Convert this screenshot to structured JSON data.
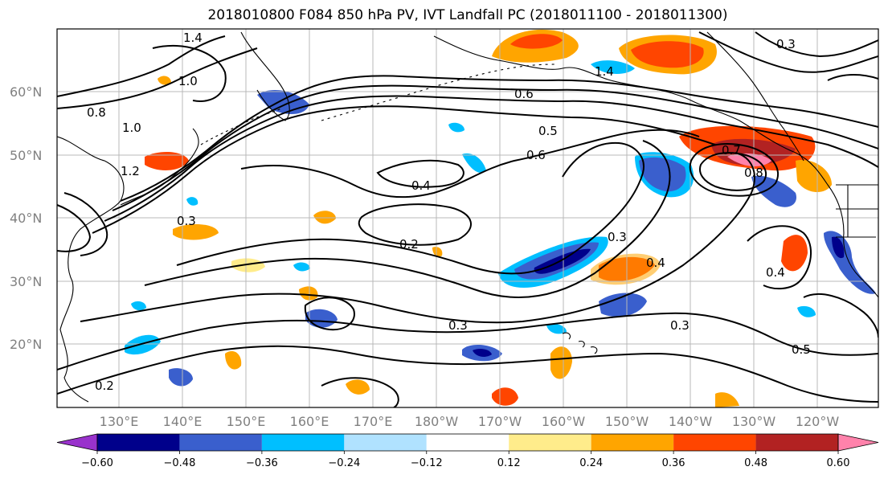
{
  "title": "2018010800 F084 850 hPa PV, IVT Landfall PC (2018011100 - 2018011300)",
  "lat_labels": [
    "60°N",
    "50°N",
    "40°N",
    "30°N",
    "20°N"
  ],
  "lon_labels": [
    "130°E",
    "140°E",
    "150°E",
    "160°E",
    "170°E",
    "180°W",
    "170°W",
    "160°W",
    "150°W",
    "140°W",
    "130°W",
    "120°W"
  ],
  "contour_labels": [
    "1.4",
    "1.0",
    "1.2",
    "1.0",
    "0.8",
    "0.6",
    "0.5",
    "0.4",
    "0.2",
    "0.3",
    "0.3",
    "0.3",
    "0.4",
    "0.3",
    "0.5",
    "0.6",
    "0.7",
    "0.8",
    "0.4",
    "0.2",
    "1.4",
    "0.3"
  ],
  "colorbar": {
    "ticks": [
      "−0.60",
      "−0.48",
      "−0.36",
      "−0.24",
      "−0.12",
      "0.12",
      "0.24",
      "0.36",
      "0.48",
      "0.60"
    ],
    "colors": [
      "#9932cc",
      "#00008b",
      "#3a5fcd",
      "#00bfff",
      "#b0e2ff",
      "#ffffff",
      "#ffec8b",
      "#ffa500",
      "#ff4500",
      "#b22222",
      "#ff82ab"
    ]
  },
  "fill_colors": {
    "neg1": "#b0e2ff",
    "neg2": "#00bfff",
    "neg3": "#3a5fcd",
    "neg4": "#00008b",
    "pos1": "#ffec8b",
    "pos2": "#ffa500",
    "pos3": "#ff4500",
    "pos4": "#b22222",
    "pos5": "#ff82ab"
  }
}
